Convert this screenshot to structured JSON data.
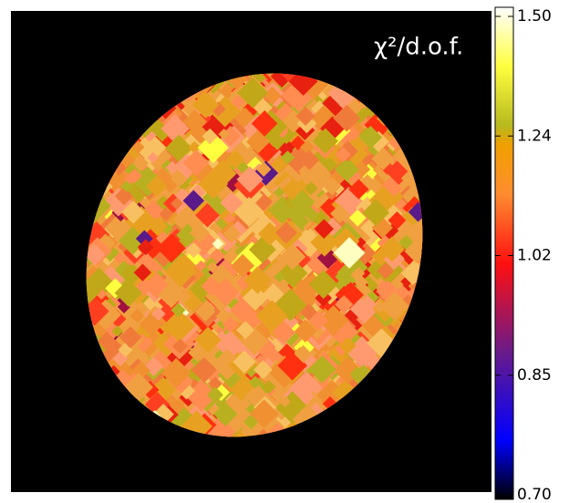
{
  "chart_data": {
    "type": "map",
    "colorbar_label": "χ²/d.o.f.",
    "clim": [
      0.7,
      1.5
    ],
    "cticks": [
      {
        "value": 0.7,
        "label": "0.70"
      },
      0.85,
      1.02,
      1.24,
      {
        "value": 1.5,
        "label": "1.50"
      }
    ]
  }
}
